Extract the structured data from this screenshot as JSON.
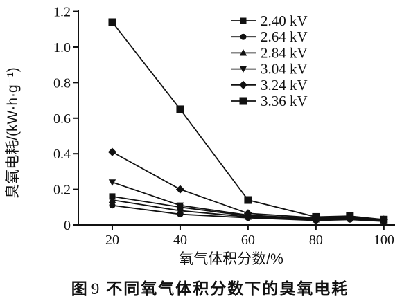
{
  "figure": {
    "caption_label": "图",
    "caption_number": "9",
    "caption_title": "不同氧气体积分数下的臭氧电耗"
  },
  "chart_data": {
    "type": "line",
    "title": "",
    "xlabel": "氧气体积分数/%",
    "ylabel": "臭氧电耗/(kW·h·g⁻¹)",
    "xlim": [
      10,
      103.3
    ],
    "ylim": [
      0,
      1.21
    ],
    "xticks": [
      "20",
      "40",
      "60",
      "80",
      "100"
    ],
    "yticks": [
      "0",
      "0.2",
      "0.4",
      "0.6",
      "0.8",
      "1.0",
      "1.2"
    ],
    "grid": false,
    "legend_position": "top-right",
    "line_color": "#111111",
    "background_color": "#ffffff",
    "x": [
      20,
      40,
      60,
      80,
      90,
      100
    ],
    "series": [
      {
        "name": "2.40 kV",
        "marker": "square",
        "values": [
          0.16,
          0.1,
          0.05,
          0.035,
          0.04,
          0.03
        ]
      },
      {
        "name": "2.64 kV",
        "marker": "circle",
        "values": [
          0.11,
          0.06,
          0.04,
          0.025,
          0.03,
          0.02
        ]
      },
      {
        "name": "2.84 kV",
        "marker": "triangle-up",
        "values": [
          0.14,
          0.08,
          0.045,
          0.03,
          0.035,
          0.025
        ]
      },
      {
        "name": "3.04 kV",
        "marker": "triangle-down",
        "values": [
          0.24,
          0.11,
          0.055,
          0.035,
          0.04,
          0.025
        ]
      },
      {
        "name": "3.24 kV",
        "marker": "diamond",
        "values": [
          0.41,
          0.2,
          0.065,
          0.04,
          0.045,
          0.03
        ]
      },
      {
        "name": "3.36 kV",
        "marker": "square-large",
        "values": [
          1.14,
          0.65,
          0.14,
          0.045,
          0.05,
          0.03
        ]
      }
    ]
  }
}
